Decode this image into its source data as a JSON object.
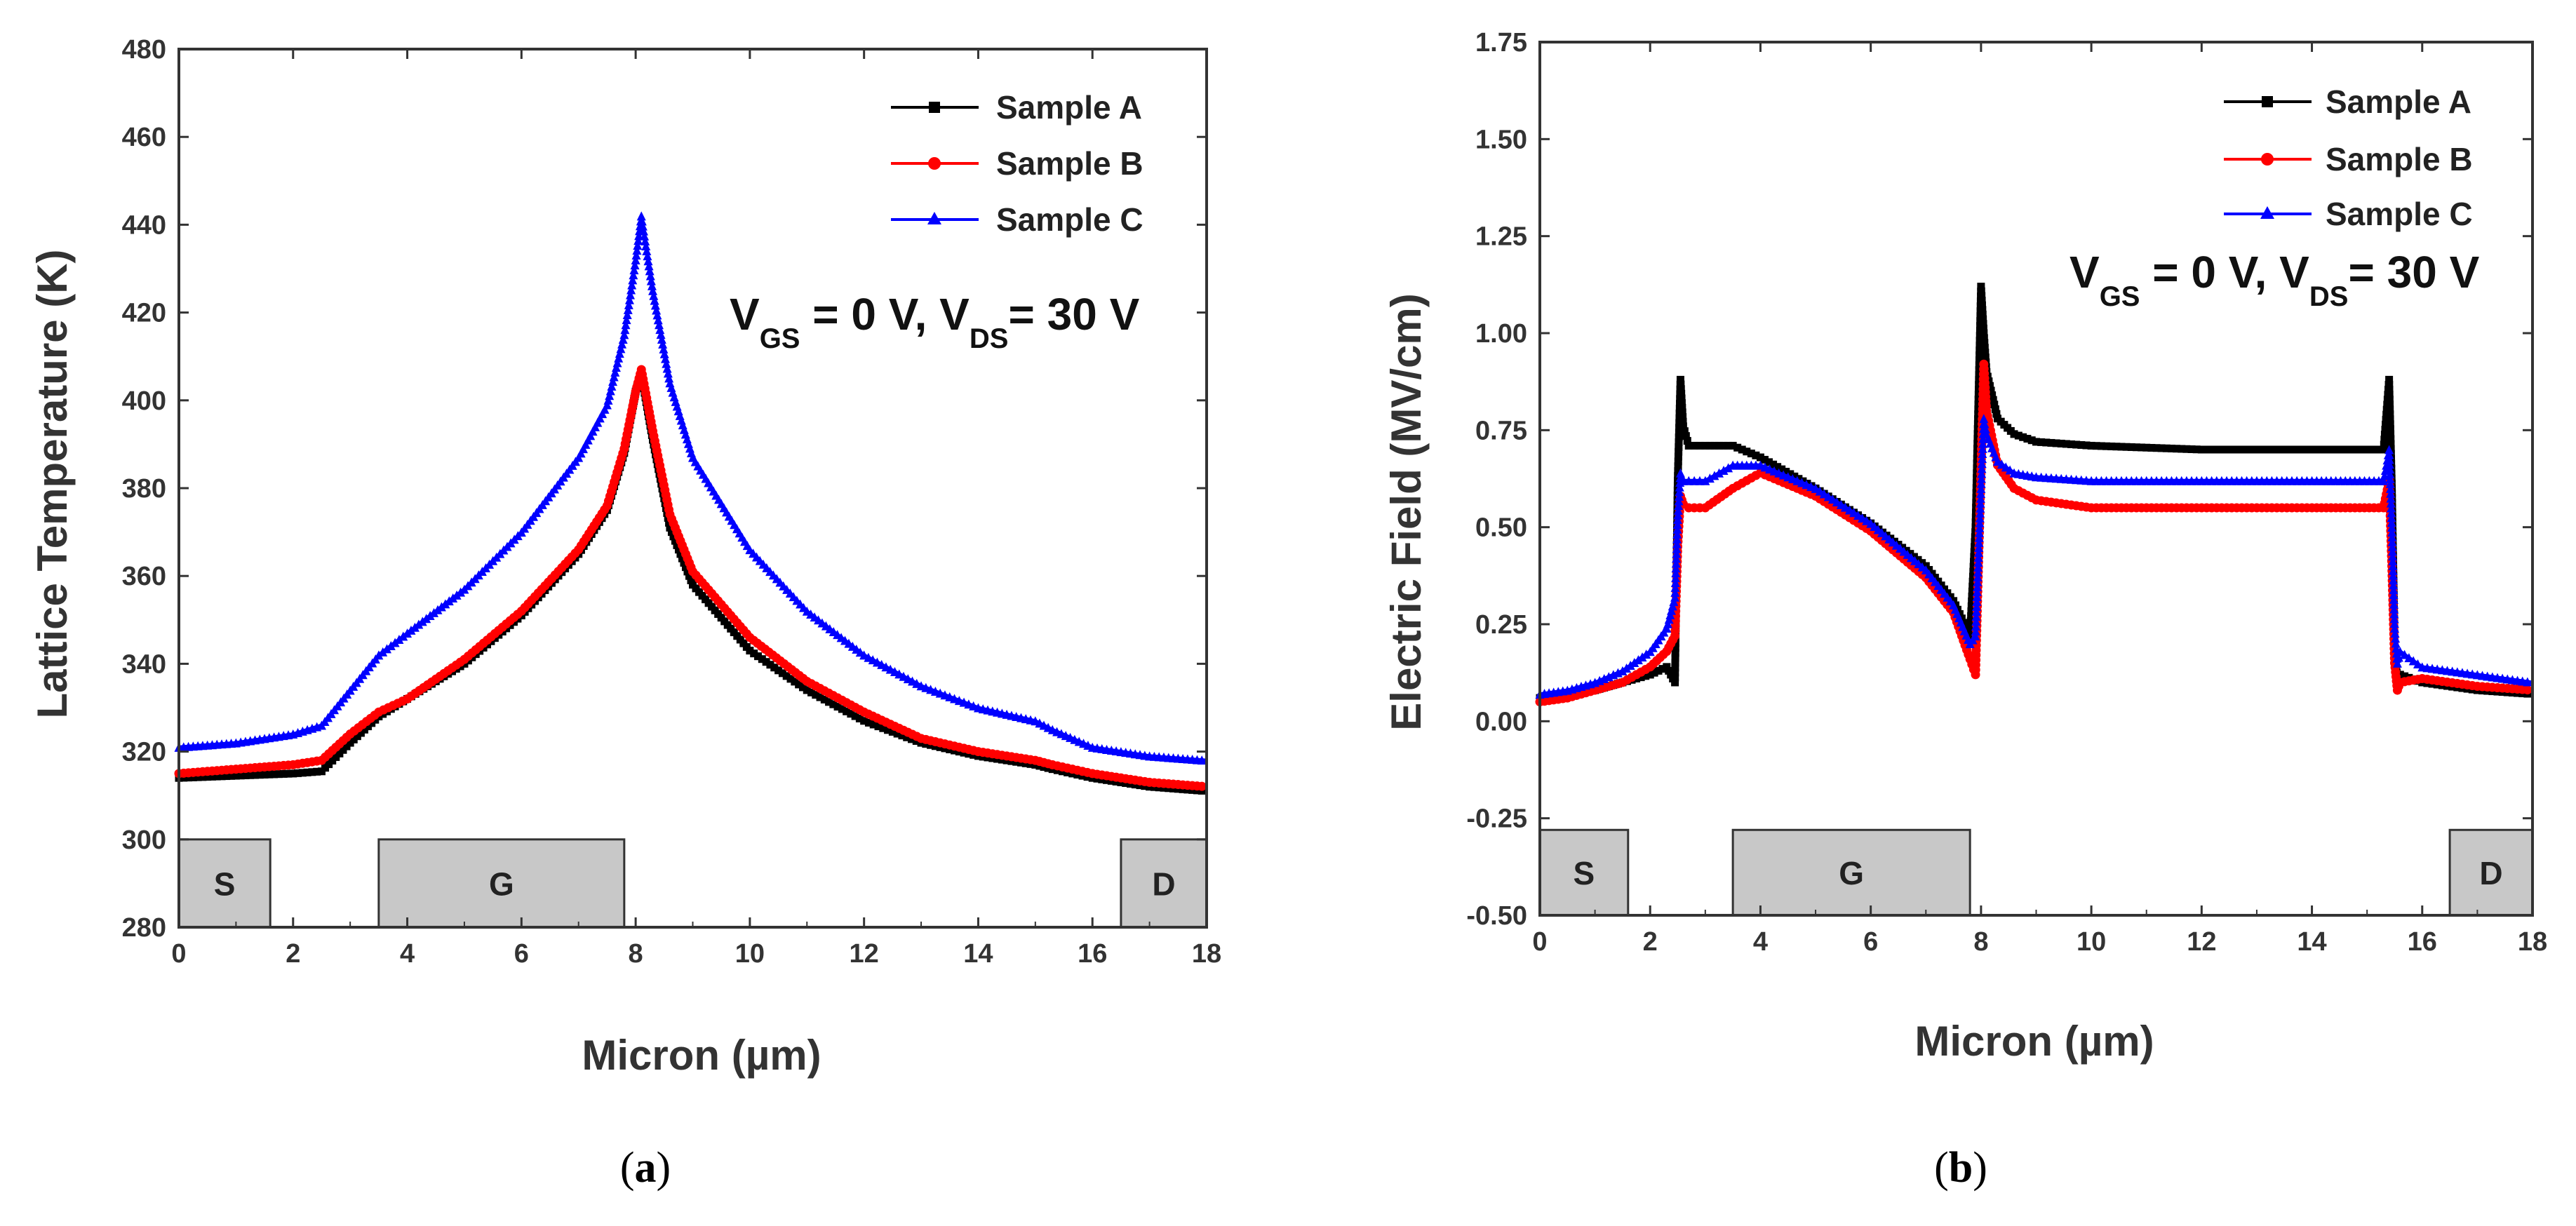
{
  "chart_data": [
    {
      "id": "a",
      "type": "scatter",
      "caption": "(a)",
      "caption_letter": "a",
      "xlabel": "Micron (µm)",
      "ylabel": "Lattice Temperature (K)",
      "xlim": [
        0,
        18
      ],
      "ylim": [
        280,
        480
      ],
      "xticks": [
        0,
        2,
        4,
        6,
        8,
        10,
        12,
        14,
        16,
        18
      ],
      "yticks": [
        280,
        300,
        320,
        340,
        360,
        380,
        400,
        420,
        440,
        460,
        480
      ],
      "legend_position": "top-right",
      "annotation": {
        "v1": "V",
        "s1": "GS",
        "mid": " = 0 V, V",
        "s2": "DS",
        "end": "= 30 V"
      },
      "regions": [
        {
          "label": "S",
          "x0": 0,
          "x1": 1.6,
          "y0": 280,
          "y1": 300
        },
        {
          "label": "G",
          "x0": 3.5,
          "x1": 7.8,
          "y0": 280,
          "y1": 300
        },
        {
          "label": "D",
          "x0": 16.5,
          "x1": 18,
          "y0": 280,
          "y1": 300
        }
      ],
      "series": [
        {
          "name": "Sample A",
          "color": "#000000",
          "marker": "square",
          "x": [
            0,
            1,
            2,
            2.5,
            3,
            3.5,
            4,
            5,
            6,
            7,
            7.5,
            7.8,
            8.0,
            8.1,
            8.3,
            8.6,
            9,
            10,
            11,
            12,
            13,
            14,
            15,
            15.3,
            16,
            17,
            18
          ],
          "y": [
            314,
            314.5,
            315,
            315.5,
            322,
            328,
            332,
            340,
            351,
            365,
            375,
            388,
            402,
            406,
            391,
            371,
            358,
            343,
            334,
            327,
            322,
            319,
            317,
            316,
            314,
            312,
            311
          ]
        },
        {
          "name": "Sample B",
          "color": "#ff0000",
          "marker": "circle",
          "x": [
            0,
            1,
            2,
            2.5,
            3,
            3.5,
            4,
            5,
            6,
            7,
            7.5,
            7.8,
            8.0,
            8.1,
            8.3,
            8.6,
            9,
            10,
            11,
            12,
            13,
            14,
            15,
            15.3,
            16,
            17,
            18
          ],
          "y": [
            315,
            316,
            317,
            318,
            324,
            329,
            332,
            341,
            352,
            366,
            376,
            389,
            402,
            407,
            393,
            374,
            361,
            346,
            336,
            329,
            323,
            320,
            318,
            317,
            315,
            313,
            312
          ]
        },
        {
          "name": "Sample C",
          "color": "#0000ff",
          "marker": "triangle",
          "x": [
            0,
            1,
            2,
            2.5,
            3,
            3.5,
            4,
            5,
            6,
            7,
            7.5,
            7.8,
            8.0,
            8.1,
            8.3,
            8.6,
            9,
            10,
            11,
            12,
            13,
            14,
            15,
            15.3,
            16,
            17,
            18
          ],
          "y": [
            321,
            322,
            324,
            326,
            334,
            342,
            347,
            357,
            370,
            387,
            399,
            415,
            432,
            442,
            425,
            404,
            387,
            366,
            352,
            342,
            335,
            330,
            327,
            325,
            321,
            319,
            318
          ]
        }
      ]
    },
    {
      "id": "b",
      "type": "scatter",
      "caption": "(b)",
      "caption_letter": "b",
      "xlabel": "Micron (µm)",
      "ylabel": "Electric Field (MV/cm)",
      "xlim": [
        0,
        18
      ],
      "ylim": [
        -0.5,
        1.75
      ],
      "xticks": [
        0,
        2,
        4,
        6,
        8,
        10,
        12,
        14,
        16,
        18
      ],
      "yticks": [
        -0.5,
        -0.25,
        0,
        0.25,
        0.5,
        0.75,
        1.0,
        1.25,
        1.5,
        1.75
      ],
      "ytick_labels": [
        "-0.50",
        "-0.25",
        "0.00",
        "0.25",
        "0.50",
        "0.75",
        "1.00",
        "1.25",
        "1.50",
        "1.75"
      ],
      "legend_position": "top-right",
      "annotation": {
        "v1": "V",
        "s1": "GS",
        "mid": " = 0 V, V",
        "s2": "DS",
        "end": "= 30 V"
      },
      "regions": [
        {
          "label": "S",
          "x0": 0,
          "x1": 1.6,
          "y0": -0.5,
          "y1": -0.28
        },
        {
          "label": "G",
          "x0": 3.5,
          "x1": 7.8,
          "y0": -0.5,
          "y1": -0.28
        },
        {
          "label": "D",
          "x0": 16.5,
          "x1": 18,
          "y0": -0.5,
          "y1": -0.28
        }
      ],
      "series": [
        {
          "name": "Sample A",
          "color": "#000000",
          "marker": "square",
          "x": [
            0,
            0.5,
            1,
            1.5,
            2,
            2.3,
            2.45,
            2.5,
            2.55,
            2.6,
            2.7,
            3,
            3.5,
            4,
            5,
            6,
            7,
            7.5,
            7.8,
            7.9,
            8.0,
            8.05,
            8.1,
            8.3,
            8.6,
            9,
            10,
            12,
            14,
            15.3,
            15.4,
            15.45,
            15.5,
            15.55,
            15.6,
            16,
            17,
            18
          ],
          "y": [
            0.06,
            0.07,
            0.08,
            0.1,
            0.12,
            0.14,
            0.1,
            0.62,
            0.88,
            0.76,
            0.71,
            0.71,
            0.71,
            0.68,
            0.6,
            0.51,
            0.4,
            0.31,
            0.22,
            0.5,
            1.12,
            1.0,
            0.9,
            0.78,
            0.74,
            0.72,
            0.71,
            0.7,
            0.7,
            0.7,
            0.88,
            0.6,
            0.2,
            0.1,
            0.12,
            0.1,
            0.08,
            0.07
          ]
        },
        {
          "name": "Sample B",
          "color": "#ff0000",
          "marker": "circle",
          "x": [
            0,
            0.5,
            1,
            1.5,
            2,
            2.3,
            2.45,
            2.5,
            2.55,
            2.6,
            2.7,
            3,
            3.5,
            4,
            5,
            6,
            7,
            7.5,
            7.8,
            7.9,
            8.0,
            8.05,
            8.1,
            8.3,
            8.6,
            9,
            10,
            12,
            14,
            15.3,
            15.4,
            15.45,
            15.5,
            15.55,
            15.6,
            16,
            17,
            18
          ],
          "y": [
            0.05,
            0.06,
            0.08,
            0.1,
            0.14,
            0.18,
            0.22,
            0.45,
            0.58,
            0.56,
            0.55,
            0.55,
            0.6,
            0.64,
            0.58,
            0.49,
            0.37,
            0.28,
            0.16,
            0.12,
            0.65,
            0.92,
            0.8,
            0.66,
            0.6,
            0.57,
            0.55,
            0.55,
            0.55,
            0.55,
            0.62,
            0.4,
            0.15,
            0.08,
            0.1,
            0.11,
            0.09,
            0.08
          ]
        },
        {
          "name": "Sample C",
          "color": "#0000ff",
          "marker": "triangle",
          "x": [
            0,
            0.5,
            1,
            1.5,
            2,
            2.3,
            2.45,
            2.5,
            2.55,
            2.6,
            2.7,
            3,
            3.5,
            4,
            5,
            6,
            7,
            7.5,
            7.8,
            7.9,
            8.0,
            8.05,
            8.1,
            8.3,
            8.6,
            9,
            10,
            12,
            14,
            15.3,
            15.4,
            15.45,
            15.5,
            15.55,
            15.6,
            16,
            17,
            18
          ],
          "y": [
            0.07,
            0.08,
            0.1,
            0.13,
            0.18,
            0.24,
            0.32,
            0.52,
            0.64,
            0.62,
            0.62,
            0.62,
            0.66,
            0.66,
            0.6,
            0.51,
            0.39,
            0.3,
            0.2,
            0.22,
            0.6,
            0.78,
            0.74,
            0.67,
            0.64,
            0.63,
            0.62,
            0.62,
            0.62,
            0.62,
            0.7,
            0.5,
            0.24,
            0.15,
            0.18,
            0.14,
            0.12,
            0.1
          ]
        }
      ]
    }
  ]
}
